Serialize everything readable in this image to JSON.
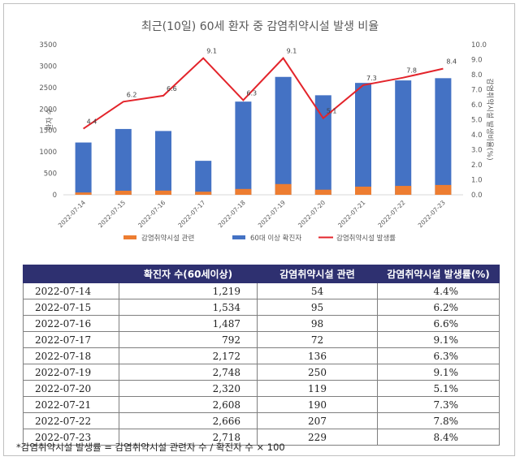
{
  "chart_data": {
    "type": "bar",
    "title": "최근(10일) 60세 환자 중 감염취약시설 발생 비율",
    "categories": [
      "2022-07-14",
      "2022-07-15",
      "2022-07-16",
      "2022-07-17",
      "2022-07-18",
      "2022-07-19",
      "2022-07-20",
      "2022-07-21",
      "2022-07-22",
      "2022-07-23"
    ],
    "series": [
      {
        "name": "감염취약시설 관련",
        "type": "bar",
        "axis": "left",
        "color": "#ed7d31",
        "values": [
          54,
          95,
          98,
          72,
          136,
          250,
          119,
          190,
          207,
          229
        ]
      },
      {
        "name": "60대 이상 확진자",
        "type": "bar",
        "axis": "left",
        "color": "#4472c4",
        "values": [
          1219,
          1534,
          1487,
          792,
          2172,
          2748,
          2320,
          2608,
          2666,
          2718
        ]
      },
      {
        "name": "감염취약시설 발생률",
        "type": "line",
        "axis": "right",
        "color": "#e3242b",
        "values": [
          4.4,
          6.2,
          6.6,
          9.1,
          6.3,
          9.1,
          5.1,
          7.3,
          7.8,
          8.4
        ]
      }
    ],
    "data_labels": [
      "4.4",
      "6.2",
      "6.6",
      "9.1",
      "6.3",
      "9.1",
      "5.1",
      "7.3",
      "7.8",
      "8.4"
    ],
    "ylabel": "환자 수",
    "y2label": "감염취약시설 발생비율(%)",
    "ylim": [
      0,
      3500
    ],
    "yticks": [
      "0",
      "500",
      "1000",
      "1500",
      "2000",
      "2500",
      "3000",
      "3500"
    ],
    "y2lim": [
      0,
      10
    ],
    "y2ticks": [
      "0.0",
      "1.0",
      "2.0",
      "3.0",
      "4.0",
      "5.0",
      "6.0",
      "7.0",
      "8.0",
      "9.0",
      "10.0"
    ],
    "legend_position": "bottom",
    "grid": false
  },
  "table": {
    "headers": [
      "",
      "확진자 수(60세이상)",
      "감염취약시설 관련",
      "감염취약시설 발생률(%)"
    ],
    "rows": [
      [
        "2022-07-14",
        "1,219",
        "54",
        "4.4%"
      ],
      [
        "2022-07-15",
        "1,534",
        "95",
        "6.2%"
      ],
      [
        "2022-07-16",
        "1,487",
        "98",
        "6.6%"
      ],
      [
        "2022-07-17",
        "792",
        "72",
        "9.1%"
      ],
      [
        "2022-07-18",
        "2,172",
        "136",
        "6.3%"
      ],
      [
        "2022-07-19",
        "2,748",
        "250",
        "9.1%"
      ],
      [
        "2022-07-20",
        "2,320",
        "119",
        "5.1%"
      ],
      [
        "2022-07-21",
        "2,608",
        "190",
        "7.3%"
      ],
      [
        "2022-07-22",
        "2,666",
        "207",
        "7.8%"
      ],
      [
        "2022-07-23",
        "2,718",
        "229",
        "8.4%"
      ]
    ]
  },
  "footnote": "*감염취약시설 발생률 = 감염취약시설 관련자 수 / 확진자 수 × 100"
}
